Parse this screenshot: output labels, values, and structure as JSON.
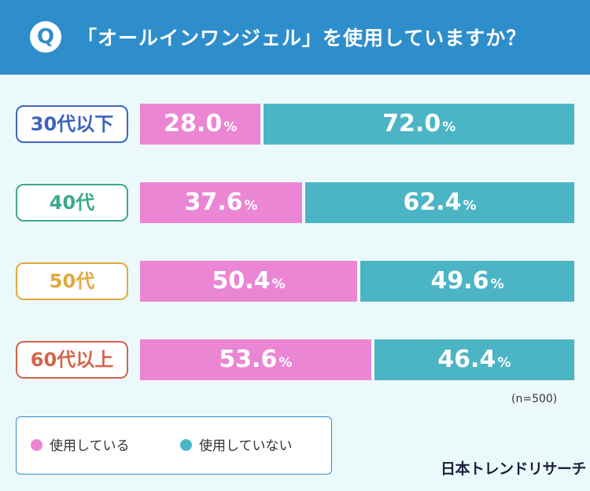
{
  "header": {
    "badge": "Q",
    "title": "「オールインワンジェル」を使用していますか？"
  },
  "colors": {
    "header_bg": "#2e8ecb",
    "using": "#ea86d4",
    "not_using": "#4bb5c6"
  },
  "chart_data": {
    "type": "bar",
    "stacked": true,
    "orientation": "horizontal",
    "title": "「オールインワンジェル」を使用していますか？",
    "unit": "%",
    "categories": [
      "30代以下",
      "40代",
      "50代",
      "60代以上"
    ],
    "category_colors": [
      "#3e63bd",
      "#3ca98a",
      "#e0a93c",
      "#d4644a"
    ],
    "series": [
      {
        "name": "使用している",
        "color": "#ea86d4",
        "values": [
          28.0,
          37.6,
          50.4,
          53.6
        ]
      },
      {
        "name": "使用していない",
        "color": "#4bb5c6",
        "values": [
          72.0,
          62.4,
          49.6,
          46.4
        ]
      }
    ],
    "xlim": [
      0,
      100
    ]
  },
  "sample_note": "(n=500)",
  "legend": {
    "items": [
      {
        "label": "使用している",
        "color": "#ea86d4"
      },
      {
        "label": "使用していない",
        "color": "#4bb5c6"
      }
    ]
  },
  "brand": "日本トレンドリサーチ"
}
